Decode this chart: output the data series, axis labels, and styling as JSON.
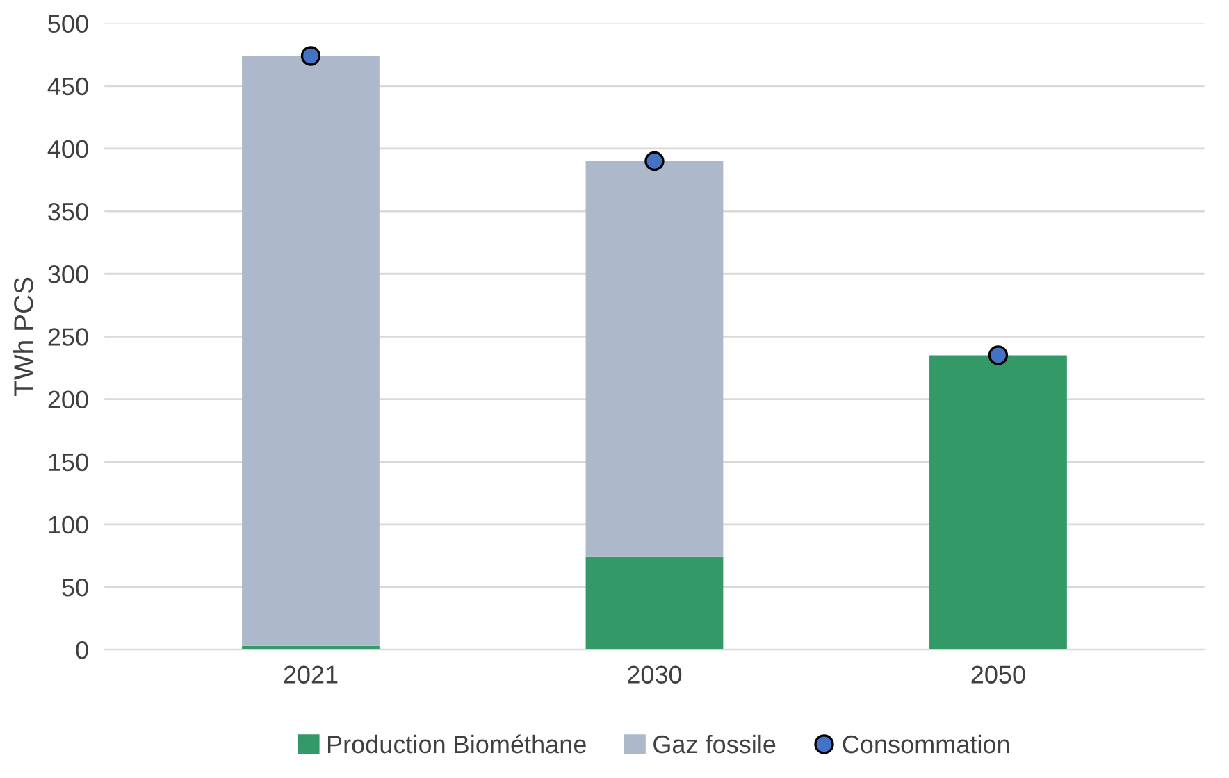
{
  "chart_data": {
    "type": "bar",
    "stacked": true,
    "ylabel": "TWh PCS",
    "categories": [
      "2021",
      "2030",
      "2050"
    ],
    "series": [
      {
        "name": "Production Biométhane",
        "color": "#339966",
        "values": [
          3,
          74,
          235
        ]
      },
      {
        "name": "Gaz fossile",
        "color": "#adb9ca",
        "values": [
          471,
          316,
          0
        ]
      },
      {
        "name": "Consommation",
        "type": "scatter",
        "color": "#4472c4",
        "values": [
          474,
          390,
          235
        ]
      }
    ],
    "ylim": [
      0,
      500
    ],
    "yticks": [
      0,
      50,
      100,
      150,
      200,
      250,
      300,
      350,
      400,
      450,
      500
    ],
    "grid": "y",
    "legend": "bottom",
    "marker": "circle"
  }
}
